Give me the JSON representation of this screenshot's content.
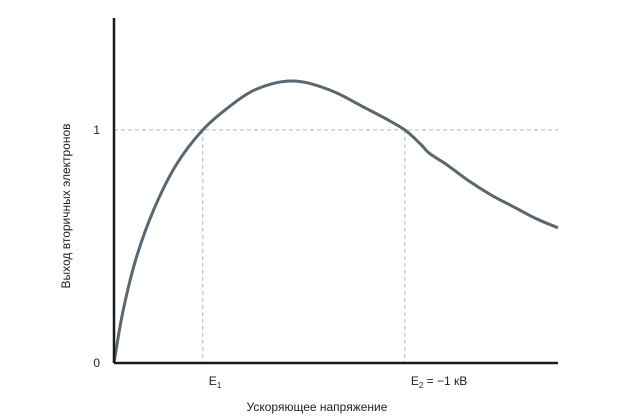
{
  "colors": {
    "axis": "#1a1a1a",
    "curve": "#5b6770",
    "guide": "#b8b8b8"
  },
  "chart_data": {
    "type": "line",
    "title": "",
    "xlabel": "Ускоряющее напряжение",
    "ylabel": "Выход вторичных электронов",
    "x_ticks": [
      {
        "x": 0.2,
        "label": "E1",
        "base": "E",
        "sub": "1",
        "suffix": ""
      },
      {
        "x": 0.655,
        "label": "E2 = −1 кВ",
        "base": "E",
        "sub": "2",
        "suffix": " = −1 кВ"
      }
    ],
    "y_ticks": [
      {
        "y": 0,
        "label": "0"
      },
      {
        "y": 1,
        "label": "1"
      }
    ],
    "xlim": [
      0,
      1
    ],
    "ylim": [
      0,
      1.48
    ],
    "reference_line_y": 1,
    "grid": false,
    "series": [
      {
        "x": [
          0,
          0.02,
          0.05,
          0.09,
          0.14,
          0.2,
          0.26,
          0.31,
          0.36,
          0.4,
          0.44,
          0.5,
          0.56,
          0.61,
          0.655,
          0.69,
          0.71,
          0.75,
          0.8,
          0.85,
          0.9,
          0.95,
          1.0
        ],
        "values": [
          0,
          0.22,
          0.45,
          0.66,
          0.85,
          1.0,
          1.1,
          1.165,
          1.2,
          1.21,
          1.2,
          1.16,
          1.1,
          1.05,
          1.0,
          0.94,
          0.9,
          0.85,
          0.78,
          0.72,
          0.67,
          0.62,
          0.58
        ]
      }
    ]
  }
}
